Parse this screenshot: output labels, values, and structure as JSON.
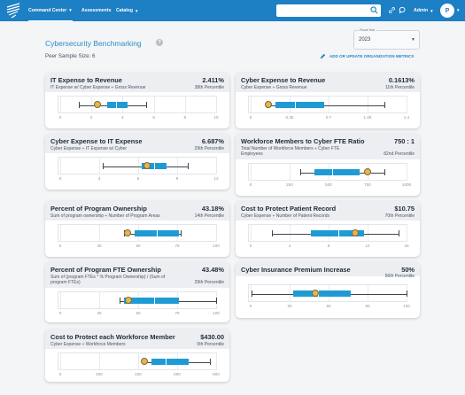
{
  "nav": {
    "items": [
      {
        "label": "Command Center",
        "dropdown": true,
        "active": true
      },
      {
        "label": "Assessments",
        "dropdown": false,
        "active": false
      },
      {
        "label": "Catalog",
        "dropdown": true,
        "active": false
      }
    ],
    "search_placeholder": "",
    "admin_label": "Admin",
    "avatar_initial": "P",
    "icons": [
      "logo-icon",
      "search-icon",
      "link-icon",
      "chat-icon",
      "chevron-down-icon"
    ],
    "accent_color": "#1d7fc4"
  },
  "page": {
    "title": "Cybersecurity Benchmarking",
    "peer_sample": "Peer Sample Size: 6",
    "fiscal_year_label": "Fiscal Year",
    "fiscal_year_value": "2023",
    "add_metrics_label": "ADD OR UPDATE ORGANIZATION METRICS"
  },
  "colors": {
    "box": "#1f9bd4",
    "marker": "#e7b54a",
    "header": "#eceef1"
  },
  "cards": [
    {
      "title": "IT Expense to Revenue",
      "value": "2.411%",
      "subtitle": "IT Expense w/ Cyber Expense ÷ Gross Revenue",
      "percentile": "38th Percentile",
      "axis": {
        "min": 0,
        "max": 10,
        "ticks": [
          0,
          2,
          4,
          6,
          8,
          10
        ],
        "tick_labels": [
          "0",
          "2",
          "4",
          "6",
          "8",
          "10"
        ]
      },
      "box": {
        "whisker_low": 1.2,
        "q1": 3.0,
        "median": 3.6,
        "q3": 4.3,
        "whisker_high": 5.5
      },
      "marker": 2.411
    },
    {
      "title": "Cyber Expense to Revenue",
      "value": "0.1613%",
      "subtitle": "Cyber Expense ÷ Gross Revenue",
      "percentile": "11th Percentile",
      "axis": {
        "min": 0,
        "max": 1.4,
        "ticks": [
          0,
          0.35,
          0.7,
          1.05,
          1.4
        ],
        "tick_labels": [
          "0",
          "0.35",
          "0.7",
          "1.05",
          "1.4"
        ]
      },
      "box": {
        "whisker_low": 0.14,
        "q1": 0.22,
        "median": 0.4,
        "q3": 0.66,
        "whisker_high": 1.2
      },
      "marker": 0.1613
    },
    {
      "title": "Cyber Expense to IT Expense",
      "value": "6.687%",
      "subtitle": "Cyber Expense ÷ IT Expense w/ Cyber",
      "percentile": "29th Percentile",
      "axis": {
        "min": 0,
        "max": 12,
        "ticks": [
          0,
          3,
          6,
          9,
          12
        ],
        "tick_labels": [
          "0",
          "3",
          "6",
          "9",
          "12"
        ]
      },
      "box": {
        "whisker_low": 3.3,
        "q1": 6.3,
        "median": 7.2,
        "q3": 8.2,
        "whisker_high": 9.8
      },
      "marker": 6.687
    },
    {
      "title": "Workforce Members to Cyber FTE Ratio",
      "value": "750 : 1",
      "subtitle": "Total Number of Workforce Members ÷ Cyber FTE Employees",
      "percentile": "82nd Percentile",
      "axis": {
        "min": 0,
        "max": 1000,
        "ticks": [
          0,
          250,
          500,
          750,
          1000
        ],
        "tick_labels": [
          "0",
          "250",
          "500",
          "750",
          "1000"
        ]
      },
      "box": {
        "whisker_low": 320,
        "q1": 410,
        "median": 525,
        "q3": 700,
        "whisker_high": 860
      },
      "marker": 750
    },
    {
      "title": "Percent of Program Ownership",
      "value": "43.18%",
      "subtitle": "Sum of program ownership ÷ Number of Program Areas",
      "percentile": "14th Percentile",
      "axis": {
        "min": 0,
        "max": 100,
        "ticks": [
          0,
          25,
          50,
          75,
          100
        ],
        "tick_labels": [
          "0",
          "25",
          "50",
          "75",
          "100"
        ]
      },
      "box": {
        "whisker_low": 41,
        "q1": 48,
        "median": 62,
        "q3": 76,
        "whisker_high": 77
      },
      "marker": 43.18
    },
    {
      "title": "Cost to Protect Patient Record",
      "value": "$10.75",
      "subtitle": "Cyber Expense ÷ Number of Patient Records",
      "percentile": "70th Percentile",
      "axis": {
        "min": 0,
        "max": 16,
        "ticks": [
          0,
          4,
          8,
          12,
          16
        ],
        "tick_labels": [
          "0",
          "4",
          "8",
          "12",
          "16"
        ]
      },
      "box": {
        "whisker_low": 2.2,
        "q1": 6.2,
        "median": 9.0,
        "q3": 11.6,
        "whisker_high": 15.2
      },
      "marker": 10.75
    },
    {
      "title": "Percent of Program FTE Ownership",
      "value": "43.48%",
      "subtitle": "Sum of (program FTEs * % Program Ownership) / (Sum of program FTEs)",
      "percentile": "29th Percentile",
      "axis": {
        "min": 0,
        "max": 100,
        "ticks": [
          0,
          25,
          50,
          75,
          100
        ],
        "tick_labels": [
          "0",
          "25",
          "50",
          "75",
          "100"
        ]
      },
      "box": {
        "whisker_low": 38,
        "q1": 41,
        "median": 60,
        "q3": 76,
        "whisker_high": 100
      },
      "marker": 43.48
    },
    {
      "title": "Cyber Insurance Premium Increase",
      "value": "50%",
      "subtitle": "",
      "percentile": "56th Percentile",
      "axis": {
        "min": 0,
        "max": 120,
        "ticks": [
          0,
          30,
          60,
          90,
          120
        ],
        "tick_labels": [
          "0",
          "30",
          "60",
          "90",
          "120"
        ]
      },
      "box": {
        "whisker_low": 1,
        "q1": 33,
        "median": 52,
        "q3": 77,
        "whisker_high": 120
      },
      "marker": 50
    },
    {
      "title": "Cost to Protect each Workforce Member",
      "value": "$430.00",
      "subtitle": "Cyber Expense ÷ Workforce Members",
      "percentile": "0th Percentile",
      "axis": {
        "min": 0,
        "max": 800,
        "ticks": [
          0,
          200,
          400,
          600,
          800
        ],
        "tick_labels": [
          "0",
          "200",
          "400",
          "600",
          "800"
        ]
      },
      "box": {
        "whisker_low": 425,
        "q1": 470,
        "median": 540,
        "q3": 660,
        "whisker_high": 770
      },
      "marker": 430
    }
  ]
}
